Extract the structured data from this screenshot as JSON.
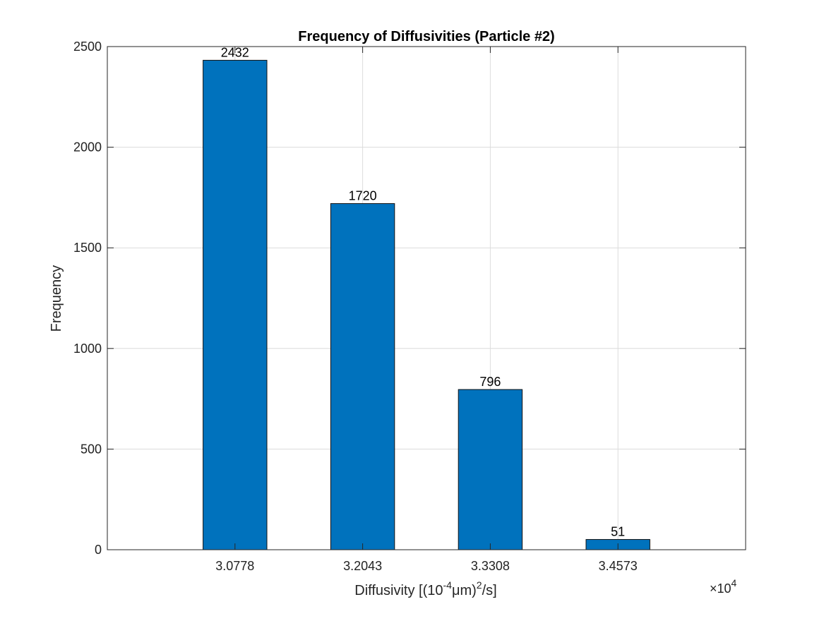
{
  "chart_data": {
    "type": "bar",
    "title": "Frequency of Diffusivities (Particle #2)",
    "xlabel": "Diffusivity [(10⁻⁴µm)²/s]",
    "xlabel_parts": {
      "prefix": "Diffusivity [(10",
      "exp1": "-4",
      "mid": "μm)",
      "exp2": "2",
      "suffix": "/s]"
    },
    "ylabel": "Frequency",
    "x_multiplier": {
      "base": "×10",
      "exponent": "4"
    },
    "categories": [
      "3.0778",
      "3.2043",
      "3.3308",
      "3.4573"
    ],
    "values": [
      2432,
      1720,
      796,
      51
    ],
    "data_labels": [
      "2432",
      "1720",
      "796",
      "51"
    ],
    "ylim": [
      0,
      2500
    ],
    "yticks": [
      0,
      500,
      1000,
      1500,
      2000,
      2500
    ],
    "grid": true,
    "bar_color": "#0072bd"
  }
}
